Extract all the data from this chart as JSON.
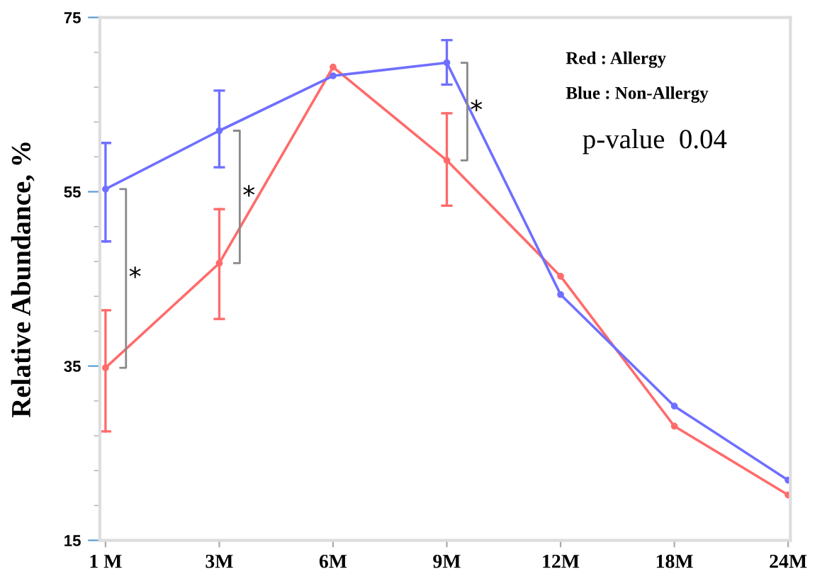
{
  "chart_data": {
    "type": "line",
    "ylabel": "Relative Abundance, %",
    "categories": [
      "1 M",
      "3M",
      "6M",
      "9M",
      "12M",
      "18M",
      "24M"
    ],
    "series": [
      {
        "color": "#ff6b6b",
        "values": [
          34.8,
          46.8,
          69.3,
          58.6,
          45.3,
          28.1,
          20.2
        ],
        "errors": [
          [
            27.5,
            41.4
          ],
          [
            40.4,
            53.0
          ],
          null,
          [
            53.4,
            64.0
          ],
          null,
          null,
          null
        ]
      },
      {
        "color": "#6f6fff",
        "values": [
          55.3,
          62.0,
          68.3,
          69.8,
          43.2,
          30.4,
          21.9
        ],
        "errors": [
          [
            49.3,
            60.6
          ],
          [
            57.8,
            66.6
          ],
          null,
          [
            67.3,
            72.4
          ],
          null,
          null,
          null
        ]
      }
    ],
    "ylim": [
      15,
      75
    ],
    "yticks": [
      15,
      35,
      55,
      75
    ],
    "grid": false,
    "marker": "circle",
    "line_style": "solid",
    "annotations": [
      "Red : Allergy",
      "Blue : Non-Allergy",
      "p-value  0.04",
      "*",
      "*",
      "*"
    ]
  }
}
